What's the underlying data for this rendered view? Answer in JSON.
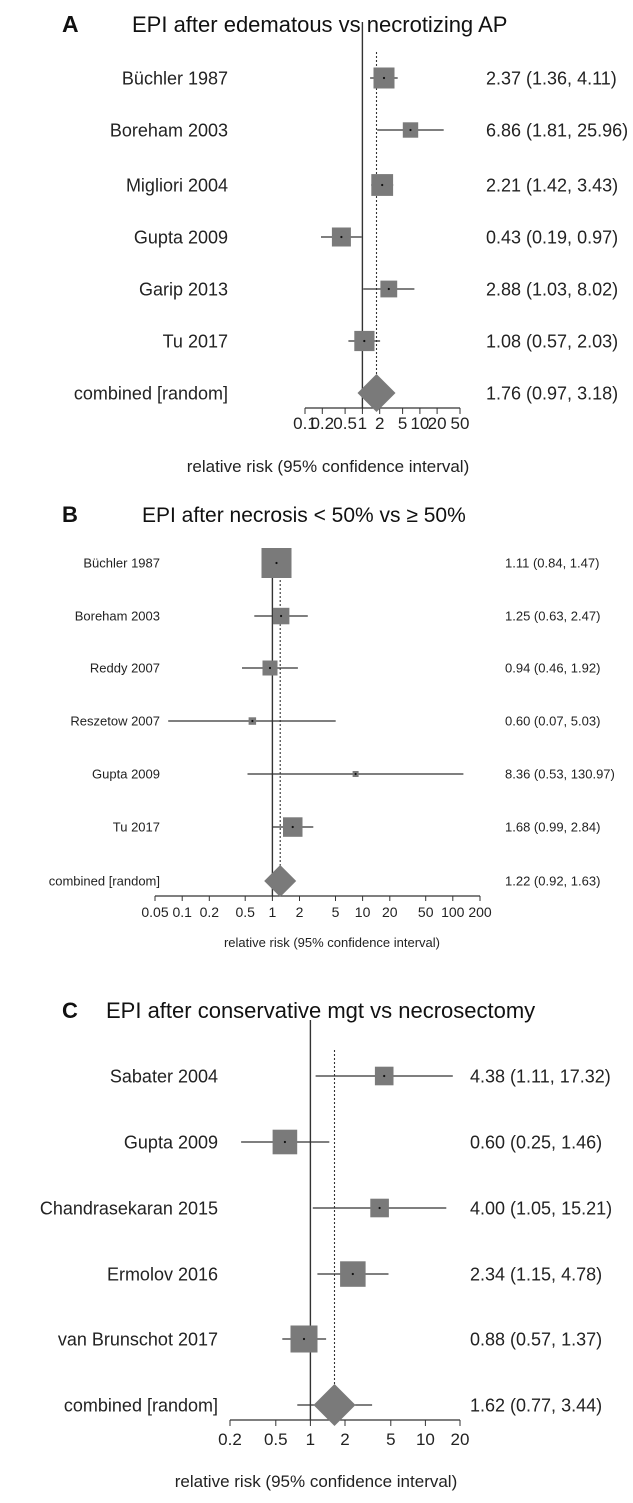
{
  "chart_data": [
    {
      "type": "forest",
      "panel_label": "A",
      "title": "EPI after edematous vs necrotizing AP",
      "xlabel": "relative risk (95% confidence interval)",
      "x_scale": "log",
      "xticks": [
        0.1,
        0.2,
        0.5,
        1,
        2,
        5,
        10,
        20,
        50
      ],
      "xtick_labels": [
        "0.1",
        "0.2",
        "0.5",
        "1",
        "2",
        "5",
        "10",
        "20",
        "50"
      ],
      "xlim": [
        0.1,
        50
      ],
      "combined_estimate_line": 1.76,
      "studies": [
        {
          "label": "Büchler 1987",
          "rr": 2.37,
          "lo": 1.36,
          "hi": 4.11,
          "text": "2.37 (1.36, 4.11)",
          "weight": 0.75
        },
        {
          "label": "Boreham 2003",
          "rr": 6.86,
          "lo": 1.81,
          "hi": 25.96,
          "text": "6.86 (1.81, 25.96)",
          "weight": 0.55
        },
        {
          "label": "Migliori 2004",
          "rr": 2.21,
          "lo": 1.42,
          "hi": 3.43,
          "text": "2.21 (1.42, 3.43)",
          "weight": 0.78
        },
        {
          "label": "Gupta 2009",
          "rr": 0.43,
          "lo": 0.19,
          "hi": 0.97,
          "text": "0.43 (0.19, 0.97)",
          "weight": 0.68
        },
        {
          "label": "Garip 2013",
          "rr": 2.88,
          "lo": 1.03,
          "hi": 8.02,
          "text": "2.88 (1.03, 8.02)",
          "weight": 0.6
        },
        {
          "label": "Tu 2017",
          "rr": 1.08,
          "lo": 0.57,
          "hi": 2.03,
          "text": "1.08 (0.57, 2.03)",
          "weight": 0.72
        }
      ],
      "combined": {
        "label": "combined [random]",
        "rr": 1.76,
        "lo": 0.97,
        "hi": 3.18,
        "text": "1.76 (0.97, 3.18)"
      }
    },
    {
      "type": "forest",
      "panel_label": "B",
      "title": "EPI after necrosis < 50% vs ≥ 50%",
      "xlabel": "relative risk (95% confidence interval)",
      "x_scale": "log",
      "xticks": [
        0.05,
        0.1,
        0.2,
        0.5,
        1,
        2,
        5,
        10,
        20,
        50,
        100,
        200
      ],
      "xtick_labels": [
        "0.05",
        "0.1",
        "0.2",
        "0.5",
        "1",
        "2",
        "5",
        "10",
        "20",
        "50",
        "100",
        "200"
      ],
      "xlim": [
        0.05,
        200
      ],
      "combined_estimate_line": 1.22,
      "studies": [
        {
          "label": "Büchler 1987",
          "rr": 1.11,
          "lo": 0.84,
          "hi": 1.47,
          "text": "1.11 (0.84, 1.47)",
          "weight": 1.0
        },
        {
          "label": "Boreham 2003",
          "rr": 1.25,
          "lo": 0.63,
          "hi": 2.47,
          "text": "1.25 (0.63, 2.47)",
          "weight": 0.55
        },
        {
          "label": "Reddy 2007",
          "rr": 0.94,
          "lo": 0.46,
          "hi": 1.92,
          "text": "0.94 (0.46, 1.92)",
          "weight": 0.5
        },
        {
          "label": "Reszetow 2007",
          "rr": 0.6,
          "lo": 0.07,
          "hi": 5.03,
          "text": "0.60 (0.07, 5.03)",
          "weight": 0.25
        },
        {
          "label": "Gupta 2009",
          "rr": 8.36,
          "lo": 0.53,
          "hi": 130.97,
          "text": "8.36 (0.53, 130.97)",
          "weight": 0.2
        },
        {
          "label": "Tu 2017",
          "rr": 1.68,
          "lo": 0.99,
          "hi": 2.84,
          "text": "1.68 (0.99, 2.84)",
          "weight": 0.65
        }
      ],
      "combined": {
        "label": "combined [random]",
        "rr": 1.22,
        "lo": 0.92,
        "hi": 1.63,
        "text": "1.22 (0.92, 1.63)"
      }
    },
    {
      "type": "forest",
      "panel_label": "C",
      "title": "EPI after conservative mgt vs necrosectomy",
      "xlabel": "relative risk (95% confidence interval)",
      "x_scale": "log",
      "xticks": [
        0.2,
        0.5,
        1,
        2,
        5,
        10,
        20
      ],
      "xtick_labels": [
        "0.2",
        "0.5",
        "1",
        "2",
        "5",
        "10",
        "20"
      ],
      "xlim": [
        0.2,
        20
      ],
      "combined_estimate_line": 1.62,
      "studies": [
        {
          "label": "Sabater 2004",
          "rr": 4.38,
          "lo": 1.11,
          "hi": 17.32,
          "text": "4.38 (1.11, 17.32)",
          "weight": 0.62
        },
        {
          "label": "Gupta 2009",
          "rr": 0.6,
          "lo": 0.25,
          "hi": 1.46,
          "text": "0.60 (0.25, 1.46)",
          "weight": 0.82
        },
        {
          "label": "Chandrasekaran 2015",
          "rr": 4.0,
          "lo": 1.05,
          "hi": 15.21,
          "text": "4.00 (1.05, 15.21)",
          "weight": 0.62
        },
        {
          "label": "Ermolov 2016",
          "rr": 2.34,
          "lo": 1.15,
          "hi": 4.78,
          "text": "2.34 (1.15, 4.78)",
          "weight": 0.85
        },
        {
          "label": "van Brunschot 2017",
          "rr": 0.88,
          "lo": 0.57,
          "hi": 1.37,
          "text": "0.88 (0.57, 1.37)",
          "weight": 0.9
        }
      ],
      "combined": {
        "label": "combined [random]",
        "rr": 1.62,
        "lo": 0.77,
        "hi": 3.44,
        "text": "1.62 (0.77, 3.44)"
      }
    }
  ],
  "colors": {
    "box": "#7a7a7a",
    "line": "#333333",
    "text": "#222222"
  }
}
